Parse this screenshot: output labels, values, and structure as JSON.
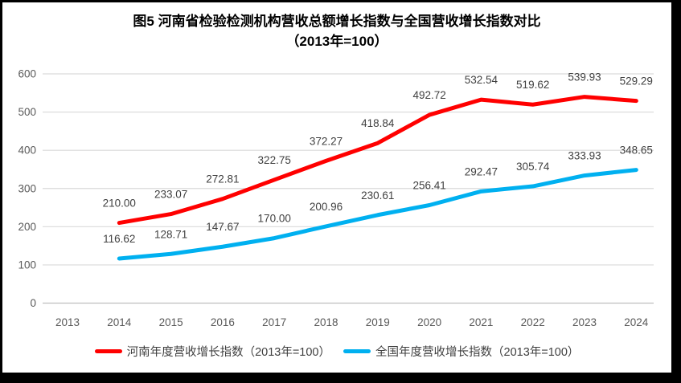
{
  "figure": {
    "title_line1": "图5  河南省检验检测机构营收总额增长指数与全国营收增长指数对比",
    "title_line2": "（2013年=100）"
  },
  "chart_data": {
    "type": "line",
    "title": "图5 河南省检验检测机构营收总额增长指数与全国营收增长指数对比（2013年=100）",
    "categories": [
      "2013",
      "2014",
      "2015",
      "2016",
      "2017",
      "2018",
      "2019",
      "2020",
      "2021",
      "2022",
      "2023",
      "2024"
    ],
    "series": [
      {
        "name": "河南年度营收增长指数（2013年=100）",
        "color": "#FF0000",
        "values": [
          null,
          210.0,
          233.07,
          272.81,
          322.75,
          372.27,
          418.84,
          492.72,
          532.54,
          519.62,
          539.93,
          529.29
        ]
      },
      {
        "name": "全国年度营收增长指数（2013年=100）",
        "color": "#00B0F0",
        "values": [
          null,
          116.62,
          128.71,
          147.67,
          170.0,
          200.96,
          230.61,
          256.41,
          292.47,
          305.74,
          333.93,
          348.65
        ]
      }
    ],
    "xlabel": "",
    "ylabel": "",
    "ylim": [
      0,
      600
    ],
    "ytick_step": 100,
    "grid": true,
    "legend_position": "bottom",
    "data_labels": true,
    "label_decimals": 2
  },
  "style": {
    "grid_color": "#D9D9D9",
    "axis_line_color": "#BFBFBF",
    "tick_label_color": "#595959",
    "data_label_color": "#404040",
    "title_color": "#000000",
    "background": "#FFFFFF",
    "border_color": "#000000"
  }
}
